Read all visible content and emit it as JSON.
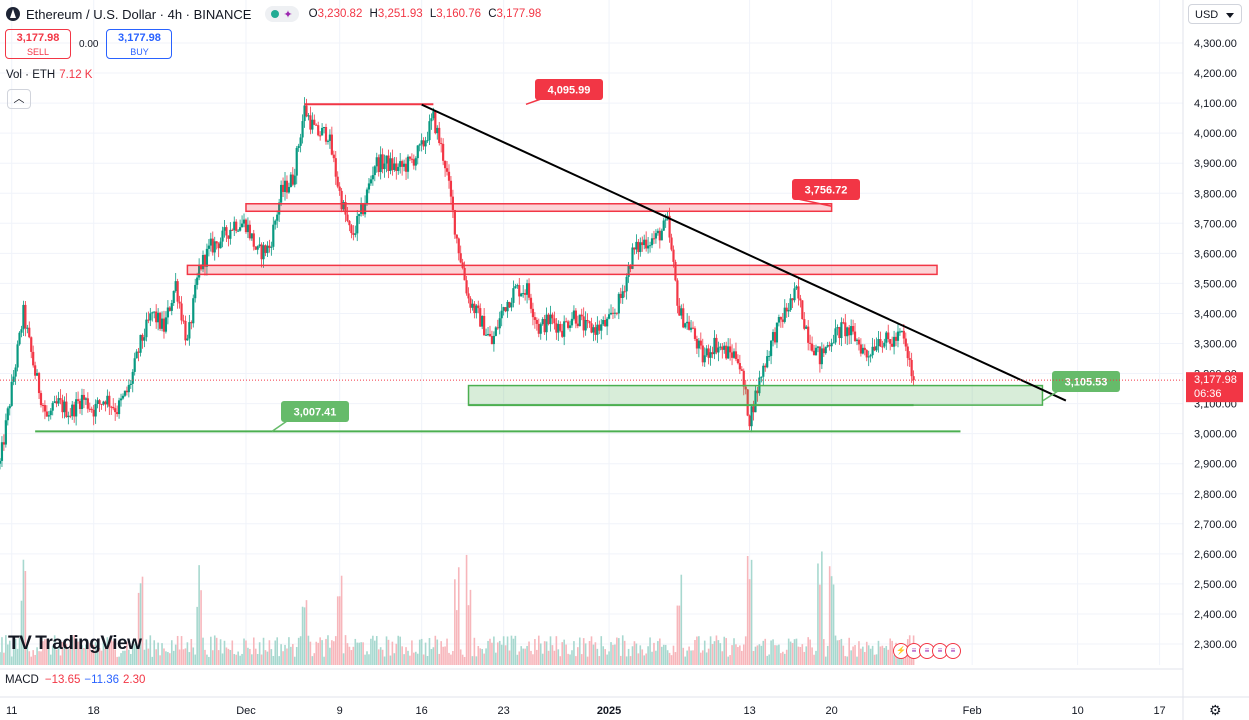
{
  "header": {
    "symbol_title": "Ethereum / U.S. Dollar · 4h · BINANCE",
    "ohlc": {
      "o_label": "O",
      "o": "3,230.82",
      "h_label": "H",
      "h": "3,251.93",
      "l_label": "L",
      "l": "3,160.76",
      "c_label": "C",
      "c": "3,177.98"
    }
  },
  "trade": {
    "sell_price": "3,177.98",
    "sell_label": "SELL",
    "spread": "0.00",
    "buy_price": "3,177.98",
    "buy_label": "BUY"
  },
  "volume_legend": {
    "label": "Vol · ETH",
    "value": "7.12 K"
  },
  "currency": "USD",
  "macd_legend": {
    "label": "MACD",
    "v1": "−13.65",
    "v2": "−11.36",
    "v3": "2.30"
  },
  "logo_text": "TradingView",
  "colors": {
    "up": "#089981",
    "down": "#f23645",
    "resistance": "#f23645",
    "support": "#4caf50",
    "trend": "#000000"
  },
  "chart_data": {
    "type": "candlestick",
    "timeframe": "4h",
    "y_axis": {
      "range": [
        2250,
        4420
      ],
      "ticks": [
        2300,
        2400,
        2500,
        2600,
        2700,
        2800,
        2900,
        3000,
        3100,
        3200,
        3300,
        3400,
        3500,
        3600,
        3700,
        3800,
        3900,
        4000,
        4100,
        4200,
        4300
      ],
      "tick_labels": [
        "2,300.00",
        "2,400.00",
        "2,500.00",
        "2,600.00",
        "2,700.00",
        "2,800.00",
        "2,900.00",
        "3,000.00",
        "3,100.00",
        "3,200.00",
        "3,300.00",
        "3,400.00",
        "3,500.00",
        "3,600.00",
        "3,700.00",
        "3,800.00",
        "3,900.00",
        "4,000.00",
        "4,100.00",
        "4,200.00",
        "4,300.00"
      ]
    },
    "x_axis": {
      "range": [
        "2024-11-10",
        "2025-02-19"
      ],
      "ticks": [
        {
          "date": "2024-11-11",
          "label": "11"
        },
        {
          "date": "2024-11-18",
          "label": "18"
        },
        {
          "date": "2024-12-01",
          "label": "Dec"
        },
        {
          "date": "2024-12-09",
          "label": "9"
        },
        {
          "date": "2024-12-16",
          "label": "16"
        },
        {
          "date": "2024-12-23",
          "label": "23"
        },
        {
          "date": "2025-01-01",
          "label": "2025"
        },
        {
          "date": "2025-01-13",
          "label": "13"
        },
        {
          "date": "2025-01-20",
          "label": "20"
        },
        {
          "date": "2025-02-01",
          "label": "Feb"
        },
        {
          "date": "2025-02-10",
          "label": "10"
        },
        {
          "date": "2025-02-17",
          "label": "17"
        }
      ]
    },
    "price_path": [
      [
        "2024-11-10",
        2900
      ],
      [
        "2024-11-11",
        3150
      ],
      [
        "2024-11-12",
        3400
      ],
      [
        "2024-11-13",
        3200
      ],
      [
        "2024-11-14",
        3050
      ],
      [
        "2024-11-15",
        3100
      ],
      [
        "2024-11-16",
        3070
      ],
      [
        "2024-11-17",
        3120
      ],
      [
        "2024-11-18",
        3080
      ],
      [
        "2024-11-19",
        3120
      ],
      [
        "2024-11-20",
        3080
      ],
      [
        "2024-11-21",
        3150
      ],
      [
        "2024-11-22",
        3300
      ],
      [
        "2024-11-23",
        3400
      ],
      [
        "2024-11-24",
        3350
      ],
      [
        "2024-11-25",
        3500
      ],
      [
        "2024-11-26",
        3300
      ],
      [
        "2024-11-27",
        3550
      ],
      [
        "2024-11-28",
        3620
      ],
      [
        "2024-11-29",
        3650
      ],
      [
        "2024-11-30",
        3700
      ],
      [
        "2024-12-01",
        3700
      ],
      [
        "2024-12-02",
        3600
      ],
      [
        "2024-12-03",
        3620
      ],
      [
        "2024-12-04",
        3800
      ],
      [
        "2024-12-05",
        3850
      ],
      [
        "2024-12-06",
        4080
      ],
      [
        "2024-12-07",
        4000
      ],
      [
        "2024-12-08",
        4000
      ],
      [
        "2024-12-09",
        3800
      ],
      [
        "2024-12-10",
        3650
      ],
      [
        "2024-12-11",
        3750
      ],
      [
        "2024-12-12",
        3900
      ],
      [
        "2024-12-13",
        3900
      ],
      [
        "2024-12-14",
        3880
      ],
      [
        "2024-12-15",
        3900
      ],
      [
        "2024-12-16",
        3950
      ],
      [
        "2024-12-17",
        4050
      ],
      [
        "2024-12-18",
        3900
      ],
      [
        "2024-12-19",
        3650
      ],
      [
        "2024-12-20",
        3450
      ],
      [
        "2024-12-21",
        3380
      ],
      [
        "2024-12-22",
        3300
      ],
      [
        "2024-12-23",
        3420
      ],
      [
        "2024-12-24",
        3480
      ],
      [
        "2024-12-25",
        3480
      ],
      [
        "2024-12-26",
        3350
      ],
      [
        "2024-12-27",
        3380
      ],
      [
        "2024-12-28",
        3350
      ],
      [
        "2024-12-29",
        3400
      ],
      [
        "2024-12-30",
        3350
      ],
      [
        "2024-12-31",
        3350
      ],
      [
        "2025-01-01",
        3370
      ],
      [
        "2025-01-02",
        3450
      ],
      [
        "2025-01-03",
        3600
      ],
      [
        "2025-01-04",
        3640
      ],
      [
        "2025-01-05",
        3650
      ],
      [
        "2025-01-06",
        3700
      ],
      [
        "2025-01-07",
        3400
      ],
      [
        "2025-01-08",
        3350
      ],
      [
        "2025-01-09",
        3250
      ],
      [
        "2025-01-10",
        3300
      ],
      [
        "2025-01-11",
        3270
      ],
      [
        "2025-01-12",
        3260
      ],
      [
        "2025-01-13",
        3050
      ],
      [
        "2025-01-14",
        3200
      ],
      [
        "2025-01-15",
        3320
      ],
      [
        "2025-01-16",
        3400
      ],
      [
        "2025-01-17",
        3470
      ],
      [
        "2025-01-18",
        3330
      ],
      [
        "2025-01-19",
        3250
      ],
      [
        "2025-01-20",
        3320
      ],
      [
        "2025-01-21",
        3350
      ],
      [
        "2025-01-22",
        3320
      ],
      [
        "2025-01-23",
        3260
      ],
      [
        "2025-01-24",
        3320
      ],
      [
        "2025-01-25",
        3300
      ],
      [
        "2025-01-26",
        3330
      ],
      [
        "2025-01-27",
        3177.98
      ]
    ],
    "volume_peak_dates": [
      "2024-11-12",
      "2024-11-22",
      "2024-11-27",
      "2024-12-06",
      "2024-12-09",
      "2024-12-19",
      "2024-12-20",
      "2025-01-07",
      "2025-01-13",
      "2025-01-19",
      "2025-01-20"
    ],
    "current_price": {
      "value": 3177.98,
      "label": "3,177.98",
      "countdown": "06:36"
    },
    "horizontal_levels": [
      {
        "price": 4095.99,
        "label": "4,095.99",
        "start": "2024-12-06",
        "end": "2024-12-17",
        "kind": "resistance-line"
      },
      {
        "price": 3007.41,
        "label": "3,007.41",
        "start": "2024-11-13",
        "end": "2025-01-31",
        "kind": "support-line"
      }
    ],
    "zones": [
      {
        "low": 3740,
        "high": 3765,
        "start": "2024-12-01",
        "end": "2025-01-20",
        "label": "3,756.72",
        "label_price": 3756.72,
        "kind": "resistance"
      },
      {
        "low": 3530,
        "high": 3560,
        "start": "2024-11-26",
        "end": "2025-01-29",
        "kind": "resistance"
      },
      {
        "low": 3095,
        "high": 3160,
        "start": "2024-12-20",
        "end": "2025-02-07",
        "label": "3,105.53",
        "label_price": 3105.53,
        "kind": "support"
      }
    ],
    "support_line_under_zone": {
      "price": 3095,
      "start": "2024-12-20",
      "end": "2025-01-27"
    },
    "trendline": {
      "from": {
        "date": "2024-12-16",
        "price": 4095
      },
      "to": {
        "date": "2025-02-09",
        "price": 3110
      }
    }
  }
}
